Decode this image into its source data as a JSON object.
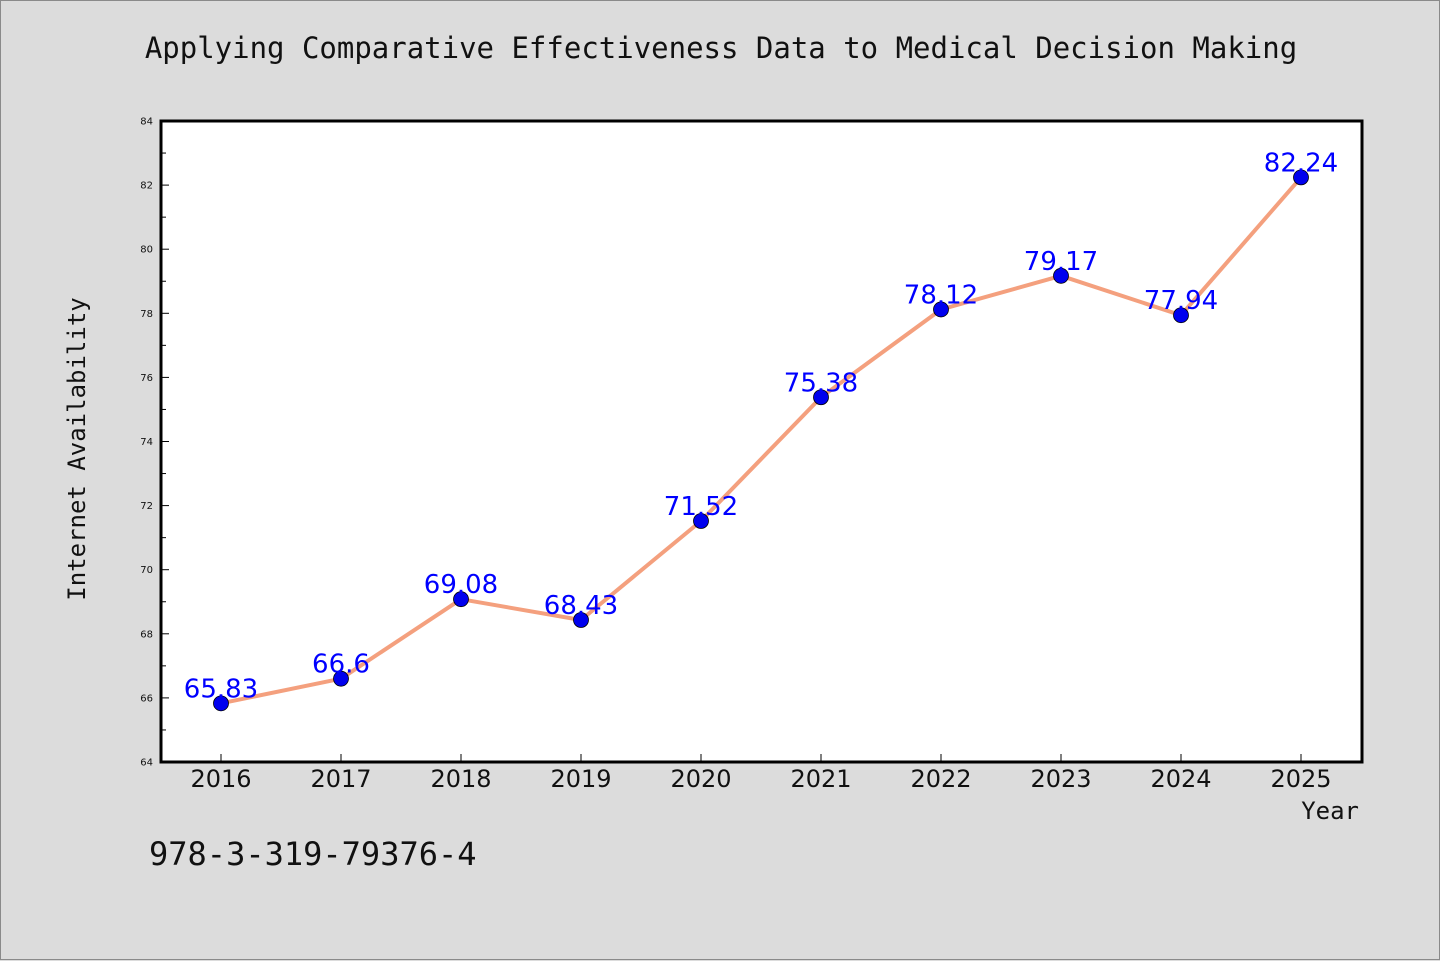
{
  "chart_data": {
    "type": "line",
    "title": "Applying Comparative Effectiveness Data to Medical Decision Making",
    "xlabel": "Year",
    "ylabel": "Internet Availability",
    "categories": [
      "2016",
      "2017",
      "2018",
      "2019",
      "2020",
      "2021",
      "2022",
      "2023",
      "2024",
      "2025"
    ],
    "series": [
      {
        "values": [
          65.83,
          66.6,
          69.08,
          68.43,
          71.52,
          75.38,
          78.12,
          79.17,
          77.94,
          82.24
        ],
        "labels": [
          "65.83",
          "66.6",
          "69.08",
          "68.43",
          "71.52",
          "75.38",
          "78.12",
          "79.17",
          "77.94",
          "82.24"
        ]
      }
    ],
    "ylim": [
      64,
      84
    ],
    "yticks": [
      "64",
      "66",
      "68",
      "70",
      "72",
      "74",
      "76",
      "78",
      "80",
      "82",
      "84"
    ],
    "grid": false,
    "colors": {
      "line": "#f4a07e",
      "marker": "#0000ee",
      "data_label": "#0000ff",
      "background": "#dcdcdc",
      "plot_background": "#ffffff"
    }
  },
  "footer": {
    "isbn": "978-3-319-79376-4"
  }
}
